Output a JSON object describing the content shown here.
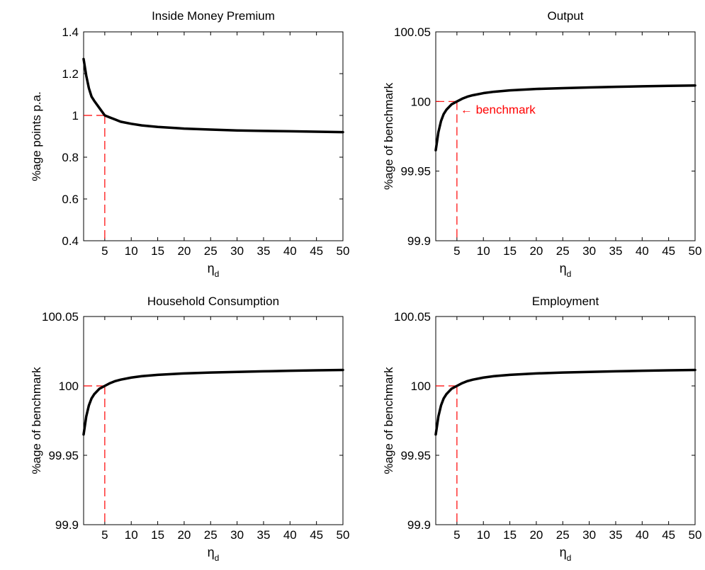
{
  "chart_data": [
    {
      "type": "line",
      "title": "Inside Money Premium",
      "ylabel": "%age points p.a.",
      "xlabel_main": "η",
      "xlabel_sub": "d",
      "xlim": [
        1,
        50
      ],
      "ylim": [
        0.4,
        1.4
      ],
      "xticks": [
        5,
        10,
        15,
        20,
        25,
        30,
        35,
        40,
        45,
        50
      ],
      "yticks": [
        0.4,
        0.6,
        0.8,
        1.0,
        1.2,
        1.4
      ],
      "ytick_labels": [
        "0.4",
        "0.6",
        "0.8",
        "1",
        "1.2",
        "1.4"
      ],
      "grid": false,
      "series": [
        {
          "color": "#000000",
          "x": [
            1,
            1.5,
            2,
            2.5,
            3,
            4,
            5,
            6,
            7,
            8,
            10,
            12,
            15,
            20,
            25,
            30,
            35,
            40,
            45,
            50
          ],
          "y": [
            1.27,
            1.19,
            1.13,
            1.09,
            1.07,
            1.035,
            1.0,
            0.99,
            0.98,
            0.97,
            0.96,
            0.952,
            0.945,
            0.937,
            0.932,
            0.928,
            0.926,
            0.924,
            0.922,
            0.92
          ]
        }
      ],
      "reference": {
        "x": 5,
        "y": 1.0,
        "color": "#ff0000"
      },
      "annotation": ""
    },
    {
      "type": "line",
      "title": "Output",
      "ylabel": "%age of benchmark",
      "xlabel_main": "η",
      "xlabel_sub": "d",
      "xlim": [
        1,
        50
      ],
      "ylim": [
        99.9,
        100.05
      ],
      "xticks": [
        5,
        10,
        15,
        20,
        25,
        30,
        35,
        40,
        45,
        50
      ],
      "yticks": [
        99.9,
        99.95,
        100,
        100.05
      ],
      "ytick_labels": [
        "99.9",
        "99.95",
        "100",
        "100.05"
      ],
      "grid": false,
      "series": [
        {
          "color": "#000000",
          "x": [
            1,
            1.5,
            2,
            2.5,
            3,
            4,
            5,
            6,
            7,
            8,
            10,
            12,
            15,
            20,
            25,
            30,
            35,
            40,
            45,
            50
          ],
          "y": [
            99.965,
            99.978,
            99.986,
            99.991,
            99.994,
            99.998,
            100.0,
            100.002,
            100.0035,
            100.0045,
            100.006,
            100.007,
            100.008,
            100.009,
            100.0096,
            100.0101,
            100.0105,
            100.0109,
            100.0112,
            100.0115
          ]
        }
      ],
      "reference": {
        "x": 5,
        "y": 100,
        "color": "#ff0000"
      },
      "annotation": "← benchmark"
    },
    {
      "type": "line",
      "title": "Household Consumption",
      "ylabel": "%age of benchmark",
      "xlabel_main": "η",
      "xlabel_sub": "d",
      "xlim": [
        1,
        50
      ],
      "ylim": [
        99.9,
        100.05
      ],
      "xticks": [
        5,
        10,
        15,
        20,
        25,
        30,
        35,
        40,
        45,
        50
      ],
      "yticks": [
        99.9,
        99.95,
        100,
        100.05
      ],
      "ytick_labels": [
        "99.9",
        "99.95",
        "100",
        "100.05"
      ],
      "grid": false,
      "series": [
        {
          "color": "#000000",
          "x": [
            1,
            1.5,
            2,
            2.5,
            3,
            4,
            5,
            6,
            7,
            8,
            10,
            12,
            15,
            20,
            25,
            30,
            35,
            40,
            45,
            50
          ],
          "y": [
            99.965,
            99.978,
            99.986,
            99.991,
            99.994,
            99.998,
            100.0,
            100.002,
            100.0035,
            100.0045,
            100.006,
            100.007,
            100.008,
            100.009,
            100.0096,
            100.0101,
            100.0105,
            100.0109,
            100.0112,
            100.0115
          ]
        }
      ],
      "reference": {
        "x": 5,
        "y": 100,
        "color": "#ff0000"
      },
      "annotation": ""
    },
    {
      "type": "line",
      "title": "Employment",
      "ylabel": "%age of benchmark",
      "xlabel_main": "η",
      "xlabel_sub": "d",
      "xlim": [
        1,
        50
      ],
      "ylim": [
        99.9,
        100.05
      ],
      "xticks": [
        5,
        10,
        15,
        20,
        25,
        30,
        35,
        40,
        45,
        50
      ],
      "yticks": [
        99.9,
        99.95,
        100,
        100.05
      ],
      "ytick_labels": [
        "99.9",
        "99.95",
        "100",
        "100.05"
      ],
      "grid": false,
      "series": [
        {
          "color": "#000000",
          "x": [
            1,
            1.5,
            2,
            2.5,
            3,
            4,
            5,
            6,
            7,
            8,
            10,
            12,
            15,
            20,
            25,
            30,
            35,
            40,
            45,
            50
          ],
          "y": [
            99.965,
            99.978,
            99.986,
            99.991,
            99.994,
            99.998,
            100.0,
            100.002,
            100.0035,
            100.0045,
            100.006,
            100.007,
            100.008,
            100.009,
            100.0096,
            100.0101,
            100.0105,
            100.0109,
            100.0112,
            100.0115
          ]
        }
      ],
      "reference": {
        "x": 5,
        "y": 100,
        "color": "#ff0000"
      },
      "annotation": ""
    }
  ]
}
